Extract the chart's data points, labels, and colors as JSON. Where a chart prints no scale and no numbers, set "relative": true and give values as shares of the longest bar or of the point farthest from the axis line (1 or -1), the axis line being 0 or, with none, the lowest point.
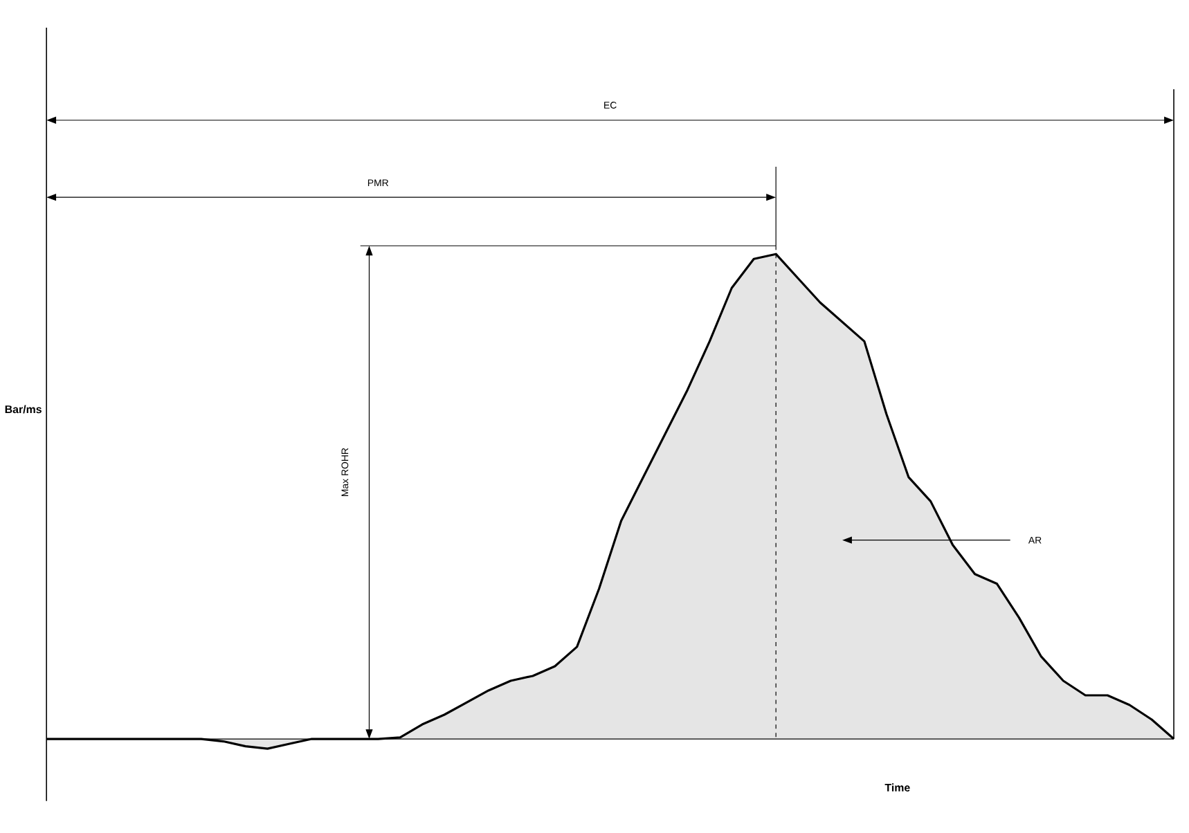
{
  "chart_data": {
    "type": "area",
    "relative": true,
    "xlabel": "Time",
    "ylabel": "Bar/ms",
    "color": "#000000",
    "marker": "none",
    "line_style": "solid",
    "annotations": [
      "EC",
      "PMR",
      "Max ROHR",
      "AR"
    ],
    "categories": [
      null,
      null,
      null,
      null,
      null,
      null,
      null,
      null,
      null,
      null,
      null,
      null,
      null,
      null,
      null,
      null,
      null,
      null,
      null,
      null,
      null,
      null,
      null,
      null,
      null,
      null,
      null,
      null,
      null,
      null,
      null,
      null,
      null,
      null,
      null,
      null,
      null,
      null,
      null,
      null,
      null,
      null,
      null,
      null,
      null,
      null,
      null,
      null,
      null,
      null,
      null,
      null
    ],
    "values": [
      0,
      0,
      0,
      0,
      0,
      0,
      0,
      0,
      -0.005,
      -0.015,
      -0.02,
      -0.01,
      0,
      0,
      0,
      0,
      0.003,
      0.03,
      0.05,
      0.075,
      0.1,
      0.12,
      0.13,
      0.15,
      0.19,
      0.31,
      0.45,
      0.54,
      0.63,
      0.72,
      0.82,
      0.93,
      0.99,
      1,
      0.95,
      0.9,
      0.86,
      0.82,
      0.67,
      0.54,
      0.49,
      0.4,
      0.34,
      0.32,
      0.25,
      0.17,
      0.12,
      0.09,
      0.09,
      0.07,
      0.04,
      0
    ]
  }
}
